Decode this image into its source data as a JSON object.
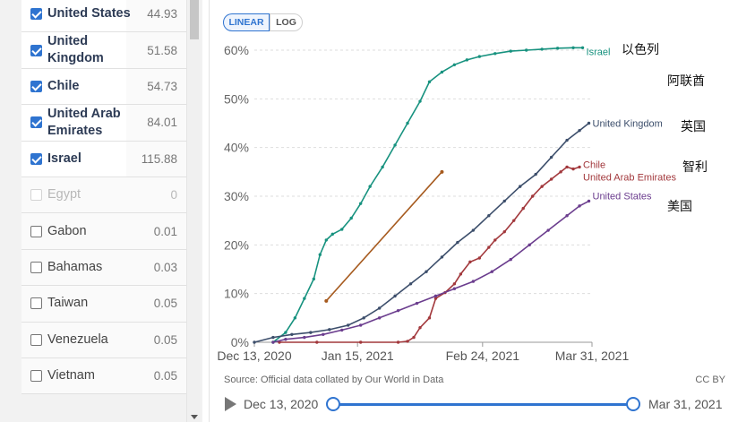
{
  "countries": [
    {
      "name": "United States",
      "value": "44.93",
      "state": "selected"
    },
    {
      "name": "United Kingdom",
      "value": "51.58",
      "state": "selected"
    },
    {
      "name": "Chile",
      "value": "54.73",
      "state": "selected"
    },
    {
      "name": "United Arab Emirates",
      "value": "84.01",
      "state": "selected"
    },
    {
      "name": "Israel",
      "value": "115.88",
      "state": "selected"
    },
    {
      "name": "Egypt",
      "value": "0",
      "state": "disabled"
    },
    {
      "name": "Gabon",
      "value": "0.01",
      "state": "normal"
    },
    {
      "name": "Bahamas",
      "value": "0.03",
      "state": "normal"
    },
    {
      "name": "Taiwan",
      "value": "0.05",
      "state": "normal"
    },
    {
      "name": "Venezuela",
      "value": "0.05",
      "state": "normal"
    },
    {
      "name": "Vietnam",
      "value": "0.05",
      "state": "normal"
    }
  ],
  "toolbar": {
    "linear_label": "LINEAR",
    "log_label": "LOG"
  },
  "source_text": "Source: Official data collated by Our World in Data",
  "license_text": "CC BY",
  "timeline": {
    "start_label": "Dec 13, 2020",
    "end_label": "Mar 31, 2021"
  },
  "annotations": {
    "israel_cn": "以色列",
    "uae_cn": "阿联酋",
    "uk_cn": "英国",
    "chile_cn": "智利",
    "us_cn": "美国"
  },
  "chart_data": {
    "type": "line",
    "y_unit": "%",
    "ylim": [
      0,
      60
    ],
    "y_ticks": [
      0,
      10,
      20,
      30,
      40,
      50,
      60
    ],
    "y_tick_labels": [
      "0%",
      "10%",
      "20%",
      "30%",
      "40%",
      "50%",
      "60%"
    ],
    "x_range_days": [
      0,
      108
    ],
    "x_ticks": [
      0,
      33,
      73,
      108
    ],
    "x_tick_labels": [
      "Dec 13, 2020",
      "Jan 15, 2021",
      "Feb 24, 2021",
      "Mar 31, 2021"
    ],
    "grid": "horizontal",
    "series": [
      {
        "name": "Israel",
        "color": "#17927f",
        "label": "Israel",
        "points": [
          [
            6,
            0
          ],
          [
            10,
            2
          ],
          [
            13,
            5
          ],
          [
            16,
            9
          ],
          [
            19,
            13
          ],
          [
            21,
            18
          ],
          [
            23,
            21
          ],
          [
            25,
            22.2
          ],
          [
            28,
            23.2
          ],
          [
            31,
            25.5
          ],
          [
            34,
            28.5
          ],
          [
            37,
            32
          ],
          [
            41,
            36
          ],
          [
            45,
            40.5
          ],
          [
            49,
            45
          ],
          [
            53,
            49.5
          ],
          [
            56,
            53.5
          ],
          [
            60,
            55.5
          ],
          [
            64,
            57
          ],
          [
            68,
            58
          ],
          [
            72,
            58.7
          ],
          [
            77,
            59.3
          ],
          [
            82,
            59.8
          ],
          [
            87,
            60
          ],
          [
            92,
            60.2
          ],
          [
            97,
            60.4
          ],
          [
            102,
            60.5
          ],
          [
            105,
            60.5
          ]
        ]
      },
      {
        "name": "United Kingdom",
        "color": "#3c4e6b",
        "label": "United Kingdom",
        "points": [
          [
            0,
            0
          ],
          [
            6,
            1
          ],
          [
            12,
            1.6
          ],
          [
            18,
            2
          ],
          [
            24,
            2.6
          ],
          [
            30,
            3.5
          ],
          [
            35,
            5
          ],
          [
            40,
            7
          ],
          [
            45,
            9.5
          ],
          [
            50,
            12
          ],
          [
            55,
            14.5
          ],
          [
            60,
            17.5
          ],
          [
            65,
            20.5
          ],
          [
            70,
            23
          ],
          [
            75,
            26
          ],
          [
            80,
            29
          ],
          [
            85,
            32
          ],
          [
            90,
            34.5
          ],
          [
            95,
            38
          ],
          [
            100,
            41.5
          ],
          [
            104,
            43.5
          ],
          [
            107,
            45
          ]
        ]
      },
      {
        "name": "Chile",
        "color": "#a2383c",
        "label": "Chile",
        "points": [
          [
            8,
            0
          ],
          [
            20,
            0
          ],
          [
            34,
            0
          ],
          [
            46,
            0
          ],
          [
            49,
            0.2
          ],
          [
            51,
            1
          ],
          [
            53,
            3
          ],
          [
            56,
            5
          ],
          [
            58,
            9
          ],
          [
            61,
            10.2
          ],
          [
            64,
            12
          ],
          [
            66,
            14
          ],
          [
            69,
            16.5
          ],
          [
            72,
            17.3
          ],
          [
            75,
            19.5
          ],
          [
            77,
            21
          ],
          [
            80,
            22.7
          ],
          [
            83,
            25
          ],
          [
            86,
            27.5
          ],
          [
            89,
            30
          ],
          [
            92,
            32
          ],
          [
            95,
            33.5
          ],
          [
            98,
            35
          ],
          [
            100,
            36
          ],
          [
            102,
            35.6
          ],
          [
            104,
            36
          ]
        ]
      },
      {
        "name": "United States",
        "color": "#6b3d8e",
        "label": "United States",
        "points": [
          [
            6,
            0
          ],
          [
            10,
            0.6
          ],
          [
            16,
            1
          ],
          [
            22,
            1.6
          ],
          [
            28,
            2.5
          ],
          [
            34,
            3.5
          ],
          [
            40,
            5
          ],
          [
            46,
            6.5
          ],
          [
            52,
            8
          ],
          [
            58,
            9.5
          ],
          [
            64,
            11
          ],
          [
            70,
            12.5
          ],
          [
            76,
            14.5
          ],
          [
            82,
            17
          ],
          [
            88,
            20
          ],
          [
            94,
            23
          ],
          [
            100,
            26
          ],
          [
            104,
            28
          ],
          [
            107,
            29
          ]
        ]
      },
      {
        "name": "United Arab Emirates",
        "color": "#a65a1e",
        "label": "United Arab Emirates",
        "style": "line",
        "points": [
          [
            23,
            8.5
          ],
          [
            60,
            35
          ]
        ]
      }
    ]
  }
}
